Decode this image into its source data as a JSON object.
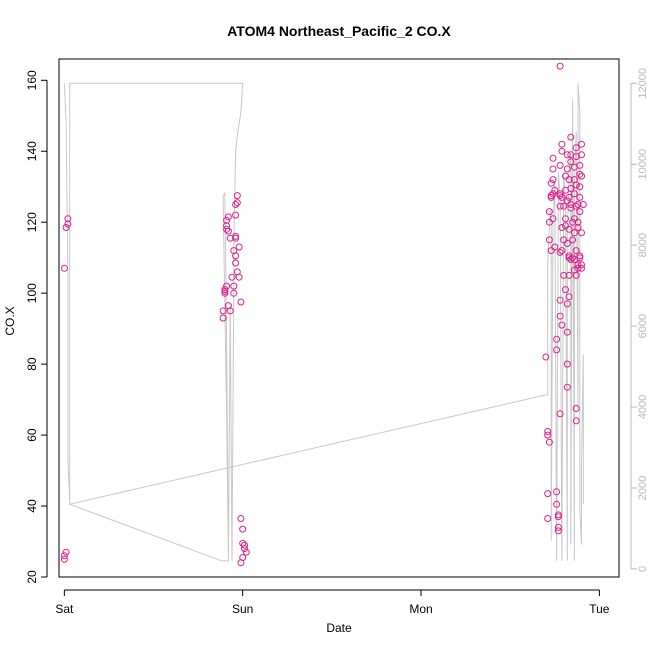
{
  "chart_data": {
    "type": "scatter",
    "title": "ATOM4 Northeast_Pacific_2 CO.X",
    "xlabel": "Date",
    "ylabel": "CO.X",
    "x_unit": "days since Sat 00:00",
    "xlim": [
      -0.03,
      3.11
    ],
    "ylim": [
      20,
      166
    ],
    "y2lim": [
      -200,
      12600
    ],
    "x_ticks": [
      {
        "v": 0,
        "label": "Sat"
      },
      {
        "v": 1,
        "label": "Sun"
      },
      {
        "v": 2,
        "label": "Mon"
      },
      {
        "v": 3,
        "label": "Tue"
      }
    ],
    "y_ticks": [
      20,
      40,
      60,
      80,
      100,
      120,
      140,
      160
    ],
    "y2_ticks": [
      0,
      2000,
      4000,
      6000,
      8000,
      10000,
      12000
    ],
    "grid": false,
    "legend": "none",
    "colors": {
      "points": "#e01e8c",
      "altitude_line": "#c8c8c8",
      "axis": "#000000",
      "axis_right": "#b8b8b8"
    },
    "series": [
      {
        "type": "points",
        "values": [
          [
            0.0,
            25
          ],
          [
            0.0,
            26
          ],
          [
            0.01,
            27
          ],
          [
            0.0,
            107
          ],
          [
            0.01,
            118.5
          ],
          [
            0.02,
            119.5
          ],
          [
            0.02,
            121
          ],
          [
            0.89,
            93
          ],
          [
            0.89,
            95
          ],
          [
            0.9,
            100
          ],
          [
            0.9,
            100.5
          ],
          [
            0.9,
            101
          ],
          [
            0.91,
            102
          ],
          [
            0.92,
            96.5
          ],
          [
            0.93,
            95
          ],
          [
            0.91,
            118
          ],
          [
            0.91,
            119
          ],
          [
            0.91,
            120.5
          ],
          [
            0.92,
            121.5
          ],
          [
            0.92,
            117.5
          ],
          [
            0.93,
            115.5
          ],
          [
            0.94,
            104.5
          ],
          [
            0.95,
            100
          ],
          [
            0.95,
            102
          ],
          [
            0.95,
            112
          ],
          [
            0.96,
            115.5
          ],
          [
            0.96,
            116
          ],
          [
            0.96,
            122
          ],
          [
            0.96,
            125
          ],
          [
            0.97,
            125.5
          ],
          [
            0.97,
            127.5
          ],
          [
            0.98,
            113
          ],
          [
            0.98,
            104.5
          ],
          [
            0.97,
            106
          ],
          [
            0.96,
            108.5
          ],
          [
            0.99,
            97.5
          ],
          [
            0.96,
            110.5
          ],
          [
            0.99,
            36.5
          ],
          [
            1.0,
            33.5
          ],
          [
            1.0,
            29.5
          ],
          [
            1.01,
            29
          ],
          [
            1.01,
            28
          ],
          [
            1.0,
            25.5
          ],
          [
            1.02,
            27
          ],
          [
            0.99,
            24
          ]
        ]
      },
      {
        "type": "points",
        "values": [
          [
            2.7,
            82
          ],
          [
            2.71,
            61
          ],
          [
            2.71,
            60
          ],
          [
            2.72,
            58
          ],
          [
            2.71,
            43.5
          ],
          [
            2.71,
            36.5
          ],
          [
            2.72,
            115
          ],
          [
            2.72,
            120
          ],
          [
            2.72,
            123
          ],
          [
            2.73,
            112
          ],
          [
            2.73,
            127
          ],
          [
            2.73,
            127.5
          ],
          [
            2.73,
            131
          ],
          [
            2.74,
            132
          ],
          [
            2.74,
            135
          ],
          [
            2.74,
            138
          ],
          [
            2.74,
            128
          ],
          [
            2.74,
            121
          ],
          [
            2.75,
            129
          ],
          [
            2.75,
            113
          ],
          [
            2.76,
            87
          ],
          [
            2.76,
            84
          ],
          [
            2.76,
            44
          ],
          [
            2.76,
            40.5
          ],
          [
            2.77,
            37
          ],
          [
            2.77,
            37.5
          ],
          [
            2.77,
            34
          ],
          [
            2.77,
            33
          ],
          [
            2.78,
            136
          ],
          [
            2.78,
            128
          ],
          [
            2.78,
            127.5
          ],
          [
            2.78,
            124.5
          ],
          [
            2.78,
            111.5
          ],
          [
            2.78,
            98
          ],
          [
            2.78,
            93.5
          ],
          [
            2.78,
            66
          ],
          [
            2.78,
            164
          ],
          [
            2.79,
            142
          ],
          [
            2.79,
            140
          ],
          [
            2.79,
            127
          ],
          [
            2.79,
            118.5
          ],
          [
            2.79,
            112
          ],
          [
            2.79,
            91
          ],
          [
            2.8,
            124.5
          ],
          [
            2.8,
            115
          ],
          [
            2.8,
            105
          ],
          [
            2.81,
            133
          ],
          [
            2.81,
            129
          ],
          [
            2.81,
            121
          ],
          [
            2.81,
            119
          ],
          [
            2.81,
            101
          ],
          [
            2.82,
            135
          ],
          [
            2.82,
            139
          ],
          [
            2.82,
            126
          ],
          [
            2.82,
            114
          ],
          [
            2.82,
            97
          ],
          [
            2.82,
            80
          ],
          [
            2.82,
            73.5
          ],
          [
            2.82,
            89
          ],
          [
            2.83,
            132
          ],
          [
            2.83,
            127
          ],
          [
            2.83,
            118
          ],
          [
            2.83,
            110
          ],
          [
            2.83,
            110.5
          ],
          [
            2.83,
            105
          ],
          [
            2.83,
            99
          ],
          [
            2.84,
            144
          ],
          [
            2.84,
            139
          ],
          [
            2.84,
            137
          ],
          [
            2.84,
            129.5
          ],
          [
            2.84,
            125
          ],
          [
            2.84,
            124
          ],
          [
            2.84,
            109.5
          ],
          [
            2.85,
            120
          ],
          [
            2.85,
            115
          ],
          [
            2.85,
            110
          ],
          [
            2.86,
            135.5
          ],
          [
            2.86,
            132
          ],
          [
            2.86,
            128
          ],
          [
            2.86,
            121
          ],
          [
            2.86,
            117
          ],
          [
            2.86,
            109.5
          ],
          [
            2.86,
            106.5
          ],
          [
            2.87,
            141
          ],
          [
            2.87,
            138.5
          ],
          [
            2.87,
            130.5
          ],
          [
            2.87,
            124.5
          ],
          [
            2.87,
            112
          ],
          [
            2.87,
            105
          ],
          [
            2.87,
            67.5
          ],
          [
            2.87,
            64
          ],
          [
            2.88,
            125
          ],
          [
            2.88,
            120
          ],
          [
            2.88,
            118.5
          ],
          [
            2.88,
            108
          ],
          [
            2.88,
            107
          ],
          [
            2.89,
            136
          ],
          [
            2.89,
            133.5
          ],
          [
            2.89,
            130
          ],
          [
            2.89,
            127
          ],
          [
            2.89,
            123
          ],
          [
            2.89,
            110.5
          ],
          [
            2.89,
            110
          ],
          [
            2.9,
            142
          ],
          [
            2.9,
            139
          ],
          [
            2.9,
            133
          ],
          [
            2.9,
            117
          ],
          [
            2.9,
            108
          ],
          [
            2.9,
            107
          ],
          [
            2.91,
            125
          ]
        ]
      },
      {
        "type": "altitude_line",
        "axis": "right",
        "values": [
          [
            0.0,
            12000
          ],
          [
            0.01,
            11000
          ],
          [
            0.02,
            7200
          ],
          [
            0.02,
            4000
          ],
          [
            0.02,
            2700
          ],
          [
            0.03,
            1700
          ],
          [
            0.03,
            1600
          ],
          [
            0.03,
            12000
          ],
          [
            0.52,
            12000
          ],
          [
            1.0,
            12000
          ],
          [
            0.99,
            11300
          ],
          [
            0.97,
            10700
          ],
          [
            0.96,
            10300
          ],
          [
            0.95,
            8000
          ],
          [
            0.95,
            7000
          ],
          [
            0.94,
            200
          ],
          [
            0.93,
            6500
          ],
          [
            0.92,
            200
          ],
          [
            0.91,
            5600
          ],
          [
            0.9,
            9300
          ],
          [
            0.89,
            9200
          ],
          [
            0.91,
            3800
          ],
          [
            0.92,
            200
          ],
          [
            0.89,
            200
          ],
          [
            0.88,
            200
          ],
          [
            0.03,
            1600
          ],
          [
            2.7,
            4300
          ],
          [
            2.71,
            4300
          ],
          [
            2.71,
            7600
          ],
          [
            2.72,
            8500
          ],
          [
            2.73,
            8900
          ],
          [
            2.73,
            700
          ],
          [
            2.74,
            8500
          ],
          [
            2.75,
            9600
          ],
          [
            2.76,
            200
          ],
          [
            2.77,
            9800
          ],
          [
            2.78,
            9200
          ],
          [
            2.79,
            200
          ],
          [
            2.8,
            9800
          ],
          [
            2.81,
            9000
          ],
          [
            2.82,
            200
          ],
          [
            2.82,
            8200
          ],
          [
            2.83,
            9900
          ],
          [
            2.84,
            10200
          ],
          [
            2.84,
            600
          ],
          [
            2.85,
            11600
          ],
          [
            2.86,
            200
          ],
          [
            2.86,
            9500
          ],
          [
            2.87,
            10800
          ],
          [
            2.88,
            4000
          ],
          [
            2.88,
            12000
          ],
          [
            2.89,
            11300
          ],
          [
            2.89,
            1500
          ],
          [
            2.9,
            600
          ],
          [
            2.9,
            2600
          ],
          [
            2.91,
            5300
          ],
          [
            2.91,
            2200
          ],
          [
            2.91,
            1600
          ]
        ]
      }
    ]
  }
}
